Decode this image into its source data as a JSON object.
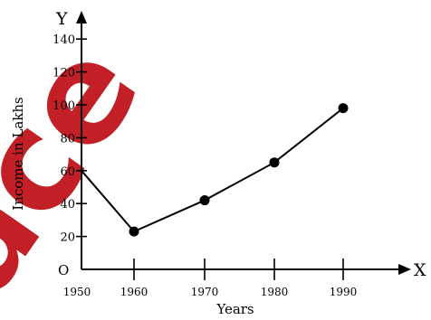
{
  "watermark": {
    "text": "ace",
    "color": "#c0141c"
  },
  "chart_data": {
    "type": "line",
    "xlabel": "Years",
    "ylabel": "Income in Lakhs",
    "x_axis_letter": "X",
    "y_axis_letter": "Y",
    "origin_label": "O",
    "x_ticks": [
      1950,
      1960,
      1970,
      1980,
      1990
    ],
    "x_tick_labels": [
      "1950",
      "1960",
      "1970",
      "1980",
      "1990"
    ],
    "y_ticks": [
      20,
      40,
      60,
      80,
      100,
      120,
      140
    ],
    "y_tick_labels": [
      "20",
      "40",
      "60",
      "80",
      "100",
      "120",
      "140"
    ],
    "xlim": [
      1950,
      1990
    ],
    "ylim": [
      0,
      150
    ],
    "grid": false,
    "series": [
      {
        "x": [
          1950,
          1960,
          1970,
          1980,
          1990
        ],
        "y": [
          60,
          23,
          42,
          65,
          98
        ],
        "markers": [
          false,
          true,
          true,
          true,
          true
        ]
      }
    ]
  }
}
